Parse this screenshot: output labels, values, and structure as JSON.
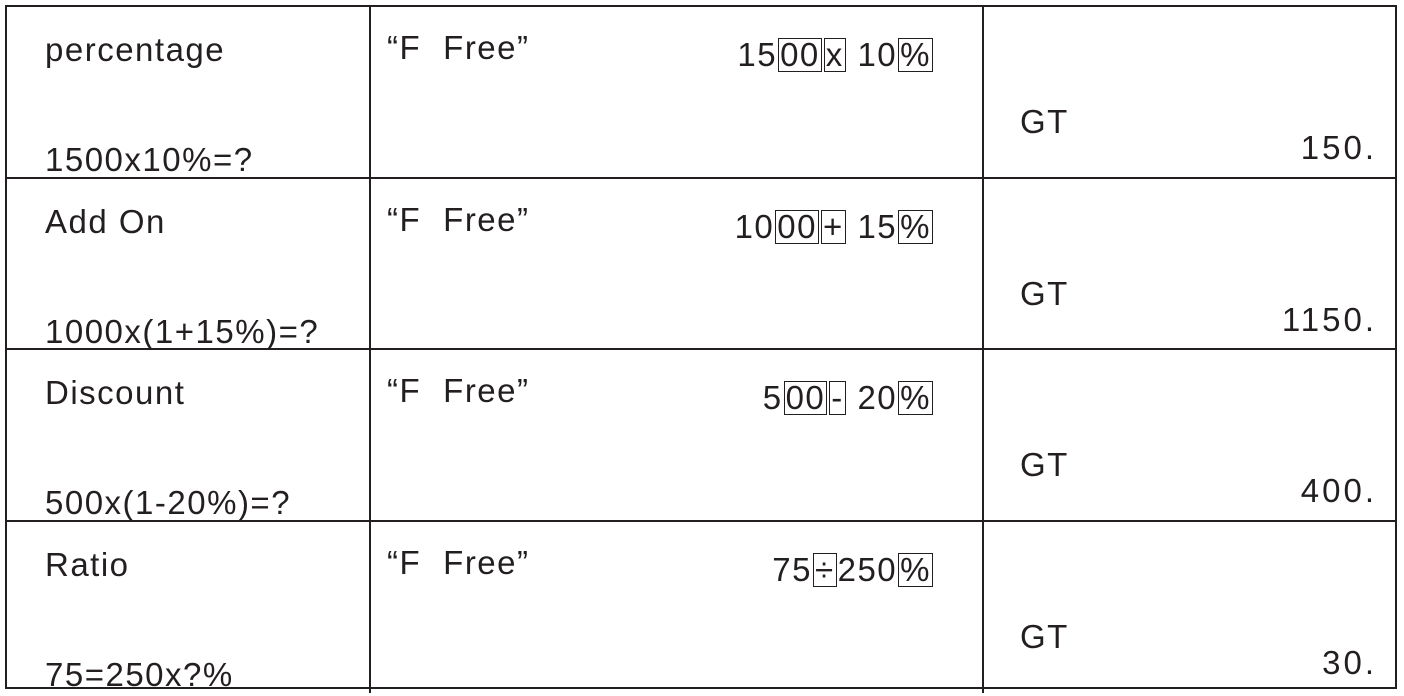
{
  "rows": [
    {
      "title": "percentage",
      "formula": "1500x10%=?",
      "mode_open": "“F",
      "mode_word": "Free”",
      "keys": [
        {
          "t": "15",
          "k": false
        },
        {
          "t": "00",
          "k": true
        },
        {
          "t": "x",
          "k": true
        },
        {
          "t": " 10",
          "k": false
        },
        {
          "t": "%",
          "k": true
        }
      ],
      "gt": "GT",
      "result": "150."
    },
    {
      "title": "Add On",
      "formula": "1000x(1+15%)=?",
      "mode_open": "“F",
      "mode_word": "Free”",
      "keys": [
        {
          "t": "10",
          "k": false
        },
        {
          "t": "00",
          "k": true
        },
        {
          "t": "+",
          "k": true
        },
        {
          "t": " 15",
          "k": false
        },
        {
          "t": "%",
          "k": true
        }
      ],
      "gt": "GT",
      "result": "1150."
    },
    {
      "title": "Discount",
      "formula": "500x(1-20%)=?",
      "mode_open": "“F",
      "mode_word": "Free”",
      "keys": [
        {
          "t": "5",
          "k": false
        },
        {
          "t": "00",
          "k": true
        },
        {
          "t": "-",
          "k": true
        },
        {
          "t": " 20",
          "k": false
        },
        {
          "t": "%",
          "k": true
        }
      ],
      "gt": "GT",
      "result": "400."
    },
    {
      "title": "Ratio",
      "formula": "75=250x?%",
      "mode_open": "“F",
      "mode_word": "Free”",
      "keys": [
        {
          "t": "75",
          "k": false
        },
        {
          "t": "÷",
          "k": true
        },
        {
          "t": "250",
          "k": false
        },
        {
          "t": "%",
          "k": true
        }
      ],
      "gt": "GT",
      "result": "30."
    }
  ]
}
